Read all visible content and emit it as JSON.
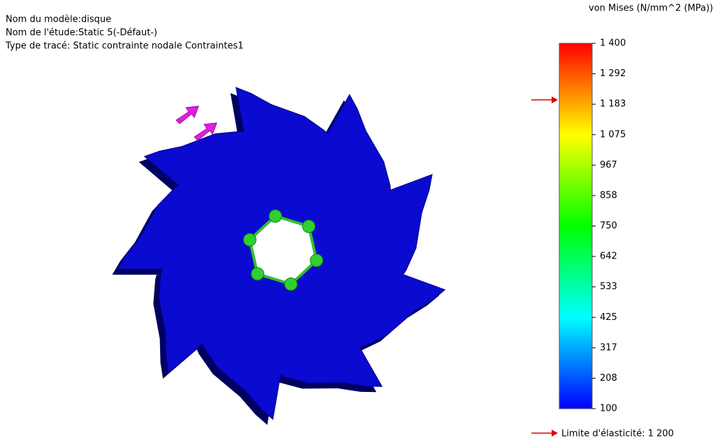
{
  "header": {
    "lines": [
      "Nom du modèle:disque",
      "Nom de l'étude:Static 5(-Défaut-)",
      "Type de tracé: Static contrainte nodale Contraintes1"
    ]
  },
  "legend": {
    "title": "von Mises (N/mm^2 (MPa))",
    "ticks": [
      "1 400",
      "1 292",
      "1 183",
      "1 075",
      "967",
      "858",
      "750",
      "642",
      "533",
      "425",
      "317",
      "208",
      "100"
    ],
    "yield_label": "Limite d'élasticité: 1 200"
  }
}
